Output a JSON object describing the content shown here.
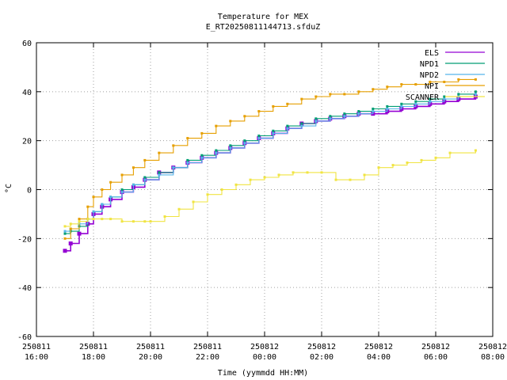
{
  "chart_data": {
    "type": "line",
    "title": "Temperature for MEX",
    "subtitle": "E_RT20250811144713.sfduZ",
    "xlabel": "Time (yymmdd HH:MM)",
    "ylabel": "°C",
    "xlim": [
      16.0,
      32.0
    ],
    "ylim": [
      -60,
      60
    ],
    "grid": true,
    "legend_position": "top-right",
    "y_ticks": [
      -60,
      -40,
      -20,
      0,
      20,
      40,
      60
    ],
    "x_ticks": [
      {
        "value": 16,
        "date": "250811",
        "time": "16:00"
      },
      {
        "value": 18,
        "date": "250811",
        "time": "18:00"
      },
      {
        "value": 20,
        "date": "250811",
        "time": "20:00"
      },
      {
        "value": 22,
        "date": "250811",
        "time": "22:00"
      },
      {
        "value": 24,
        "date": "250812",
        "time": "00:00"
      },
      {
        "value": 26,
        "date": "250812",
        "time": "02:00"
      },
      {
        "value": 28,
        "date": "250812",
        "time": "04:00"
      },
      {
        "value": 30,
        "date": "250812",
        "time": "06:00"
      },
      {
        "value": 32,
        "date": "250812",
        "time": "08:00"
      }
    ],
    "series": [
      {
        "name": "ELS",
        "color": "#9400d3",
        "x": [
          17.0,
          17.2,
          17.5,
          17.8,
          18.0,
          18.3,
          18.6,
          19.0,
          19.4,
          19.8,
          20.3,
          20.8,
          21.3,
          21.8,
          22.3,
          22.8,
          23.3,
          23.8,
          24.3,
          24.8,
          25.3,
          25.8,
          26.3,
          26.8,
          27.3,
          27.8,
          28.3,
          28.8,
          29.3,
          29.8,
          30.3,
          30.8,
          31.4
        ],
        "y": [
          -25,
          -22,
          -18,
          -14,
          -10,
          -7,
          -4,
          -1,
          1,
          4,
          7,
          9,
          11,
          13,
          15,
          17,
          19,
          21,
          23,
          25,
          27,
          28,
          29,
          30,
          31,
          31,
          32,
          33,
          34,
          35,
          36,
          37,
          38
        ]
      },
      {
        "name": "NPD1",
        "color": "#009e73",
        "x": [
          17.0,
          17.2,
          17.5,
          17.8,
          18.0,
          18.3,
          18.6,
          19.0,
          19.4,
          19.8,
          20.3,
          20.8,
          21.3,
          21.8,
          22.3,
          22.8,
          23.3,
          23.8,
          24.3,
          24.8,
          25.3,
          25.8,
          26.3,
          26.8,
          27.3,
          27.8,
          28.3,
          28.8,
          29.3,
          29.8,
          30.3,
          30.8,
          31.4
        ],
        "y": [
          -18,
          -17,
          -15,
          -12,
          -9,
          -6,
          -3,
          0,
          2,
          5,
          7,
          9,
          12,
          14,
          16,
          18,
          20,
          22,
          24,
          26,
          27,
          29,
          30,
          31,
          32,
          33,
          34,
          35,
          36,
          37,
          38,
          39,
          40
        ]
      },
      {
        "name": "NPD2",
        "color": "#56b4e9",
        "x": [
          17.0,
          17.2,
          17.5,
          17.8,
          18.0,
          18.3,
          18.6,
          19.0,
          19.4,
          19.8,
          20.3,
          20.8,
          21.3,
          21.8,
          22.3,
          22.8,
          23.3,
          23.8,
          24.3,
          24.8,
          25.3,
          25.8,
          26.3,
          26.8,
          27.3,
          27.8,
          28.3,
          28.8,
          29.3,
          29.8,
          30.3,
          30.8,
          31.4
        ],
        "y": [
          -17,
          -16,
          -14,
          -12,
          -9,
          -6,
          -3,
          -1,
          2,
          4,
          6,
          9,
          11,
          13,
          15,
          17,
          19,
          21,
          23,
          25,
          26,
          28,
          29,
          30,
          31,
          32,
          33,
          34,
          35,
          36,
          37,
          38,
          39
        ]
      },
      {
        "name": "NPI",
        "color": "#e69f00",
        "x": [
          17.0,
          17.2,
          17.5,
          17.8,
          18.0,
          18.3,
          18.6,
          19.0,
          19.4,
          19.8,
          20.3,
          20.8,
          21.3,
          21.8,
          22.3,
          22.8,
          23.3,
          23.8,
          24.3,
          24.8,
          25.3,
          25.8,
          26.3,
          26.8,
          27.3,
          27.8,
          28.3,
          28.8,
          29.3,
          29.8,
          30.3,
          30.8,
          31.4
        ],
        "y": [
          -20,
          -16,
          -12,
          -7,
          -3,
          0,
          3,
          6,
          9,
          12,
          15,
          18,
          21,
          23,
          26,
          28,
          30,
          32,
          34,
          35,
          37,
          38,
          39,
          39,
          40,
          41,
          42,
          43,
          43,
          44,
          44,
          45,
          45
        ]
      },
      {
        "name": "SCANNER",
        "color": "#f0e442",
        "x": [
          17.0,
          17.2,
          17.5,
          17.8,
          18.0,
          18.3,
          18.6,
          19.0,
          19.4,
          19.8,
          20.0,
          20.5,
          21.0,
          21.5,
          22.0,
          22.5,
          23.0,
          23.5,
          24.0,
          24.5,
          25.0,
          25.5,
          26.0,
          26.5,
          27.0,
          27.5,
          28.0,
          28.5,
          29.0,
          29.5,
          30.0,
          30.5,
          31.4
        ],
        "y": [
          -15,
          -14,
          -13,
          -12,
          -12,
          -12,
          -12,
          -13,
          -13,
          -13,
          -13,
          -11,
          -8,
          -5,
          -2,
          0,
          2,
          4,
          5,
          6,
          7,
          7,
          7,
          4,
          4,
          6,
          9,
          10,
          11,
          12,
          13,
          15,
          16
        ]
      }
    ]
  }
}
